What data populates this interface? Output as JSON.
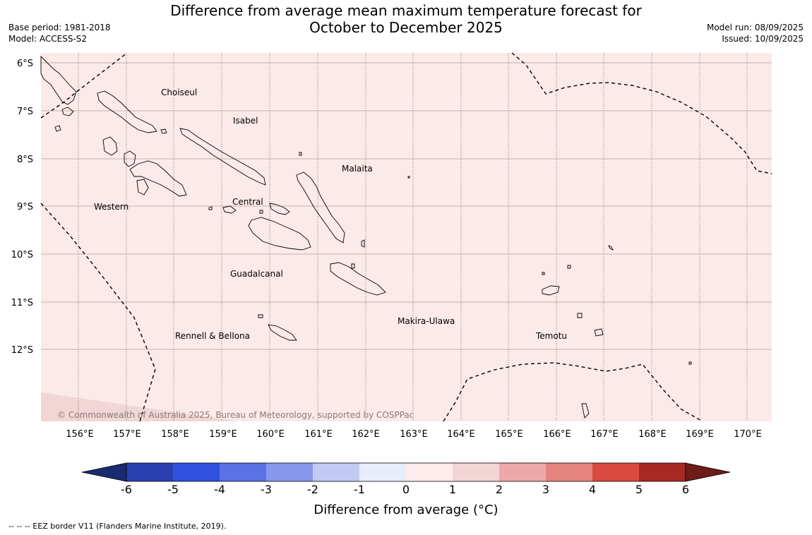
{
  "title_line1": "Difference from average mean maximum temperature forecast for",
  "title_line2": "October to December 2025",
  "base_period": "Base period: 1981-2018",
  "model": "Model: ACCESS-S2",
  "model_run": "Model run: 08/09/2025",
  "issued": "Issued: 10/09/2025",
  "copyright": "© Commonwealth of Australia 2025, Bureau of Meteorology, supported by COSPPac",
  "footnote": "--  --  -- EEZ border V11 (Flanders Marine Institute, 2019).",
  "map": {
    "lon_ticks": [
      "156°E",
      "157°E",
      "158°E",
      "159°E",
      "160°E",
      "161°E",
      "162°E",
      "163°E",
      "164°E",
      "165°E",
      "166°E",
      "167°E",
      "168°E",
      "169°E",
      "170°E"
    ],
    "lat_ticks": [
      "6°S",
      "7°S",
      "8°S",
      "9°S",
      "10°S",
      "11°S",
      "12°S"
    ],
    "fill_color": "#fbeae9",
    "southwest_patch_color": "#f0d6d5",
    "provinces": [
      "Choiseul",
      "Isabel",
      "Malaita",
      "Western",
      "Central",
      "Guadalcanal",
      "Makira-Ulawa",
      "Temotu",
      "Rennell & Bellona"
    ]
  },
  "colorbar": {
    "label": "Difference from average (°C)",
    "tick_labels": [
      "-6",
      "-5",
      "-4",
      "-3",
      "-2",
      "-1",
      "0",
      "1",
      "2",
      "3",
      "4",
      "5",
      "6"
    ],
    "colors": [
      "#1a2a6e",
      "#2a40b0",
      "#3050e0",
      "#5a72e6",
      "#8798ec",
      "#c2caf4",
      "#e8ecfb",
      "#fdeceb",
      "#f0d5d4",
      "#eda9a8",
      "#e5847f",
      "#db4a40",
      "#a82922",
      "#6e1c18"
    ]
  }
}
